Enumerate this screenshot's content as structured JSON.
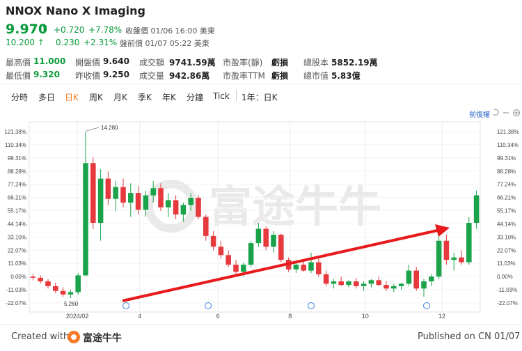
{
  "header": {
    "title": "NNOX Nano X Imaging",
    "price": "9.970",
    "arrow": "⬆",
    "change": "+0.720",
    "change_pct": "+7.78%",
    "close_info": "收盤價 01/06 16:00 美東",
    "pre_price": "10.200 ↑",
    "pre_change": "0.230",
    "pre_pct": "+2.31%",
    "pre_info": "盤前價 01/07 05:22 美東"
  },
  "stats": [
    [
      {
        "label": "最高價",
        "value": "11.000"
      },
      {
        "label": "開盤價",
        "value": "9.640"
      },
      {
        "label": "成交額",
        "value": "9741.59萬"
      },
      {
        "label": "市盈率(靜)",
        "value": "虧損"
      },
      {
        "label": "總股本",
        "value": "5852.19萬"
      }
    ],
    [
      {
        "label": "最低價",
        "value": "9.320"
      },
      {
        "label": "昨收價",
        "value": "9.250"
      },
      {
        "label": "成交量",
        "value": "942.86萬"
      },
      {
        "label": "市盈率TTM",
        "value": "虧損"
      },
      {
        "label": "總市值",
        "value": "5.83億"
      }
    ]
  ],
  "tabs": [
    "分時",
    "多日",
    "日K",
    "周K",
    "月K",
    "季K",
    "年K",
    "分鐘",
    "Tick",
    "1年：日K"
  ],
  "adjust": "前復權",
  "chart_data": {
    "type": "candlestick",
    "watermark": "富途牛牛",
    "up_color": "#1aa34a",
    "down_color": "#e5393d",
    "annotations": [
      "14.280",
      "5.260"
    ],
    "xlim": [
      0,
      60
    ],
    "xticks": [
      {
        "value": 6.4,
        "label": "2024/02"
      },
      {
        "value": 14.7,
        "label": "4"
      },
      {
        "value": 25.1,
        "label": "6"
      },
      {
        "value": 34.7,
        "label": "8"
      },
      {
        "value": 44.7,
        "label": "10"
      },
      {
        "value": 54.9,
        "label": "12"
      }
    ],
    "ylim": [
      -29.65,
      129.54
    ],
    "yticks": [
      {
        "value": 121.38,
        "label": "121.38%"
      },
      {
        "value": 110.34,
        "label": "110.34%"
      },
      {
        "value": 99.31,
        "label": "99.31%"
      },
      {
        "value": 88.28,
        "label": "88.28%"
      },
      {
        "value": 77.24,
        "label": "77.24%"
      },
      {
        "value": 66.21,
        "label": "66.21%"
      },
      {
        "value": 55.17,
        "label": "55.17%"
      },
      {
        "value": 44.14,
        "label": "44.14%"
      },
      {
        "value": 33.1,
        "label": "33.10%"
      },
      {
        "value": 22.07,
        "label": "22.07%"
      },
      {
        "value": 11.03,
        "label": "11.03%"
      },
      {
        "value": 0,
        "label": "0.00%"
      },
      {
        "value": -11.03,
        "label": "-11.03%"
      },
      {
        "value": -22.07,
        "label": "-22.07%"
      }
    ],
    "candles": [
      [
        0,
        2,
        -3,
        -1
      ],
      [
        -1,
        1,
        -6,
        -4
      ],
      [
        -4,
        -2,
        -10,
        -8
      ],
      [
        -8,
        -5,
        -14,
        -12
      ],
      [
        -12,
        -9,
        -17,
        -15
      ],
      [
        -15,
        -11,
        -18,
        -13
      ],
      [
        -13,
        3,
        -15,
        1
      ],
      [
        1,
        121.38,
        0,
        95
      ],
      [
        95,
        100,
        40,
        45
      ],
      [
        45,
        90,
        30,
        82
      ],
      [
        82,
        88,
        60,
        65
      ],
      [
        65,
        80,
        55,
        75
      ],
      [
        75,
        82,
        58,
        62
      ],
      [
        62,
        78,
        50,
        70
      ],
      [
        70,
        76,
        52,
        56
      ],
      [
        56,
        72,
        50,
        68
      ],
      [
        68,
        80,
        62,
        74
      ],
      [
        74,
        78,
        55,
        58
      ],
      [
        58,
        70,
        50,
        64
      ],
      [
        64,
        68,
        48,
        52
      ],
      [
        52,
        62,
        46,
        60
      ],
      [
        60,
        70,
        55,
        66
      ],
      [
        66,
        68,
        48,
        50
      ],
      [
        50,
        52,
        30,
        34
      ],
      [
        34,
        38,
        22,
        25
      ],
      [
        25,
        30,
        15,
        18
      ],
      [
        18,
        22,
        8,
        10
      ],
      [
        10,
        14,
        2,
        4
      ],
      [
        4,
        12,
        0,
        10
      ],
      [
        10,
        30,
        8,
        28
      ],
      [
        28,
        45,
        25,
        40
      ],
      [
        40,
        42,
        22,
        25
      ],
      [
        25,
        38,
        20,
        35
      ],
      [
        35,
        36,
        12,
        14
      ],
      [
        14,
        16,
        4,
        6
      ],
      [
        6,
        12,
        3,
        10
      ],
      [
        10,
        14,
        4,
        5
      ],
      [
        5,
        20,
        3,
        12
      ],
      [
        12,
        15,
        0,
        2
      ],
      [
        2,
        5,
        -8,
        -6
      ],
      [
        -6,
        -2,
        -10,
        -4
      ],
      [
        -4,
        0,
        -8,
        -7
      ],
      [
        -7,
        -3,
        -9,
        -4
      ],
      [
        -4,
        -1,
        -10,
        -8
      ],
      [
        -8,
        -4,
        -12,
        -6
      ],
      [
        -6,
        -2,
        -9,
        -3
      ],
      [
        -3,
        0,
        -8,
        -7
      ],
      [
        -7,
        -4,
        -12,
        -10
      ],
      [
        -10,
        -6,
        -13,
        -8
      ],
      [
        -8,
        -5,
        -11,
        -6
      ],
      [
        -6,
        10,
        -8,
        5
      ],
      [
        5,
        8,
        -12,
        -10
      ],
      [
        -10,
        -2,
        -17,
        -4
      ],
      [
        -4,
        2,
        -8,
        0
      ],
      [
        0,
        40,
        -2,
        30
      ],
      [
        30,
        35,
        10,
        14
      ],
      [
        14,
        20,
        5,
        16
      ],
      [
        16,
        22,
        10,
        12
      ],
      [
        12,
        50,
        10,
        45
      ],
      [
        45,
        72,
        40,
        68
      ]
    ]
  },
  "footer": {
    "created": "Created with",
    "brand": "富途牛牛",
    "published": "Published on CN 01/07"
  }
}
